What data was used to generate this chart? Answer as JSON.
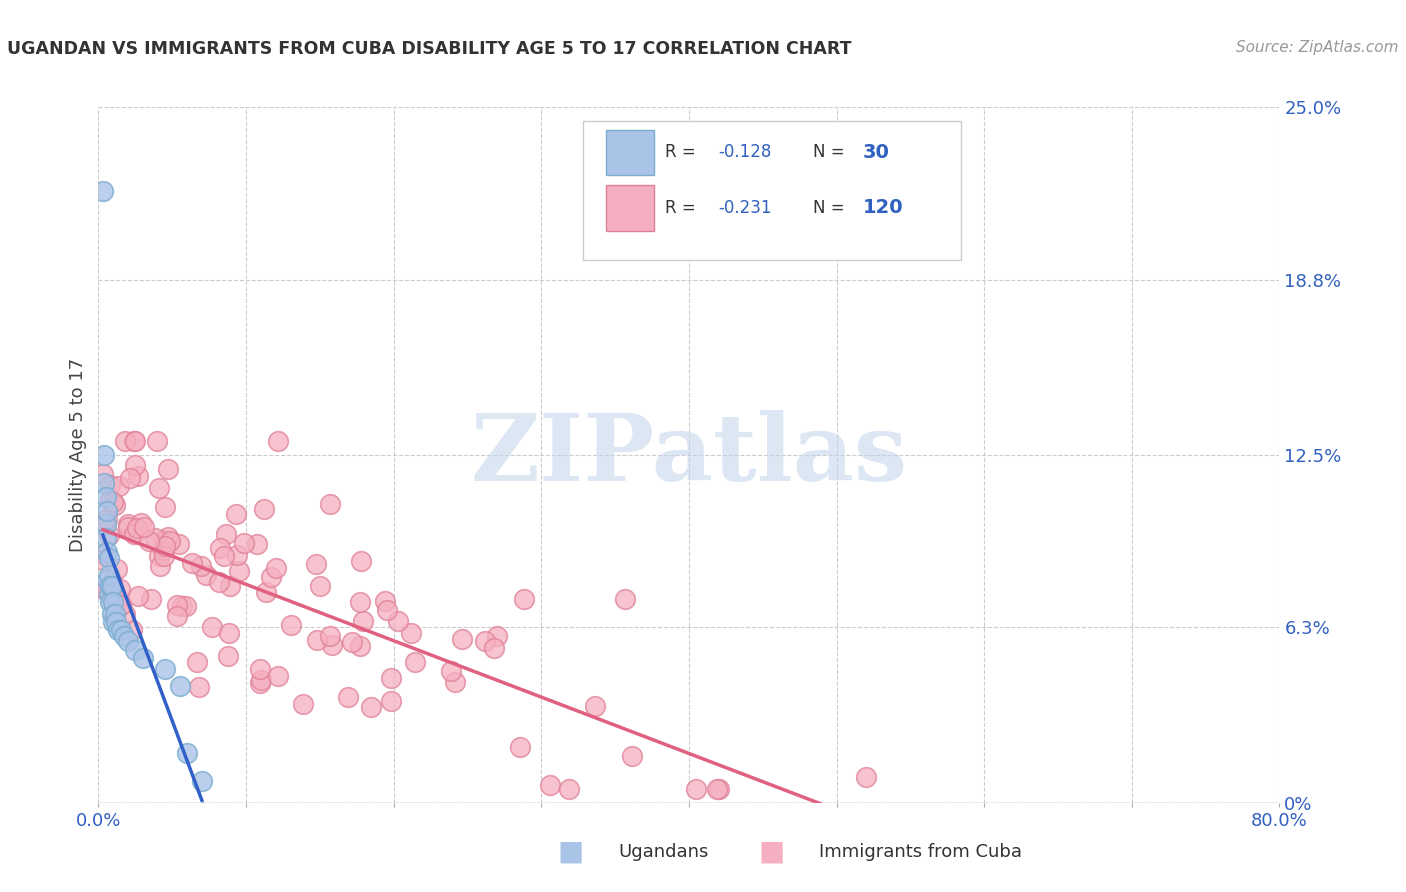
{
  "title": "UGANDAN VS IMMIGRANTS FROM CUBA DISABILITY AGE 5 TO 17 CORRELATION CHART",
  "source_text": "Source: ZipAtlas.com",
  "ylabel": "Disability Age 5 to 17",
  "xlim": [
    0.0,
    0.8
  ],
  "ylim": [
    0.0,
    0.25
  ],
  "ytick_labels": [
    "0%",
    "6.3%",
    "12.5%",
    "18.8%",
    "25.0%"
  ],
  "ytick_values": [
    0.0,
    0.063,
    0.125,
    0.188,
    0.25
  ],
  "xtick_labels": [
    "0.0%",
    "80.0%"
  ],
  "ugandan_color": "#aac4e8",
  "ugandan_edge": "#7aaccf",
  "cuba_color": "#f5afc0",
  "cuba_edge": "#e08098",
  "line_blue": "#3060c8",
  "line_pink": "#e06080",
  "line_dash": "#90b8d8",
  "legend_text_color": "#3060c0",
  "axis_text_color": "#3060c0",
  "watermark": "ZIPatlas",
  "watermark_color": "#c0d4ea",
  "grid_color": "#cccccc",
  "title_color": "#333333",
  "source_color": "#999999"
}
